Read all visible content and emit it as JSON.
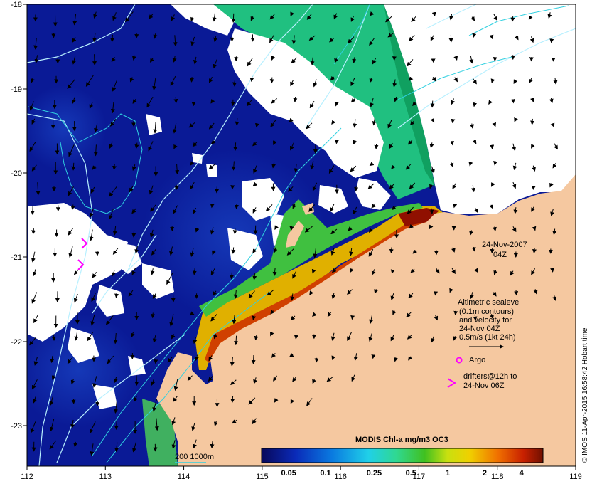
{
  "map": {
    "date_label": "24-Nov-2007",
    "time_label": "04Z",
    "lon_ticks": [
      "112",
      "113",
      "114",
      "115",
      "116",
      "117",
      "118",
      "119"
    ],
    "lat_ticks": [
      "-18",
      "-19",
      "-20",
      "-21",
      "-22",
      "-23"
    ],
    "credit": "© IMOS 11-Apr-2015 16:58:42 Hobart time"
  },
  "legend": {
    "altimetry_lines": [
      "Altimetric sealevel",
      "(0.1m contours)",
      "and velocity for",
      "24-Nov 04Z",
      "0.5m/s (1kt 24h)"
    ],
    "argo_label": "Argo",
    "drifters_lines": [
      "drifters@12h to",
      "24-Nov 06Z"
    ],
    "bathy_label": "200  1000m"
  },
  "colorbar": {
    "title": "MODIS Chl-a mg/m3 OC3",
    "ticks": [
      "0.05",
      "0.1",
      "0.25",
      "0.5",
      "1",
      "2",
      "4"
    ],
    "tick_values": [
      0.05,
      0.1,
      0.25,
      0.5,
      1,
      2,
      4
    ],
    "range": [
      0.03,
      6
    ]
  },
  "colors": {
    "land": "#f5c8a0",
    "cloud": "#ffffff",
    "low_chl": "#0a1a96",
    "contour": "#b8f0ff",
    "bathy": "#30d0e0",
    "marker": "#ff00ff"
  }
}
